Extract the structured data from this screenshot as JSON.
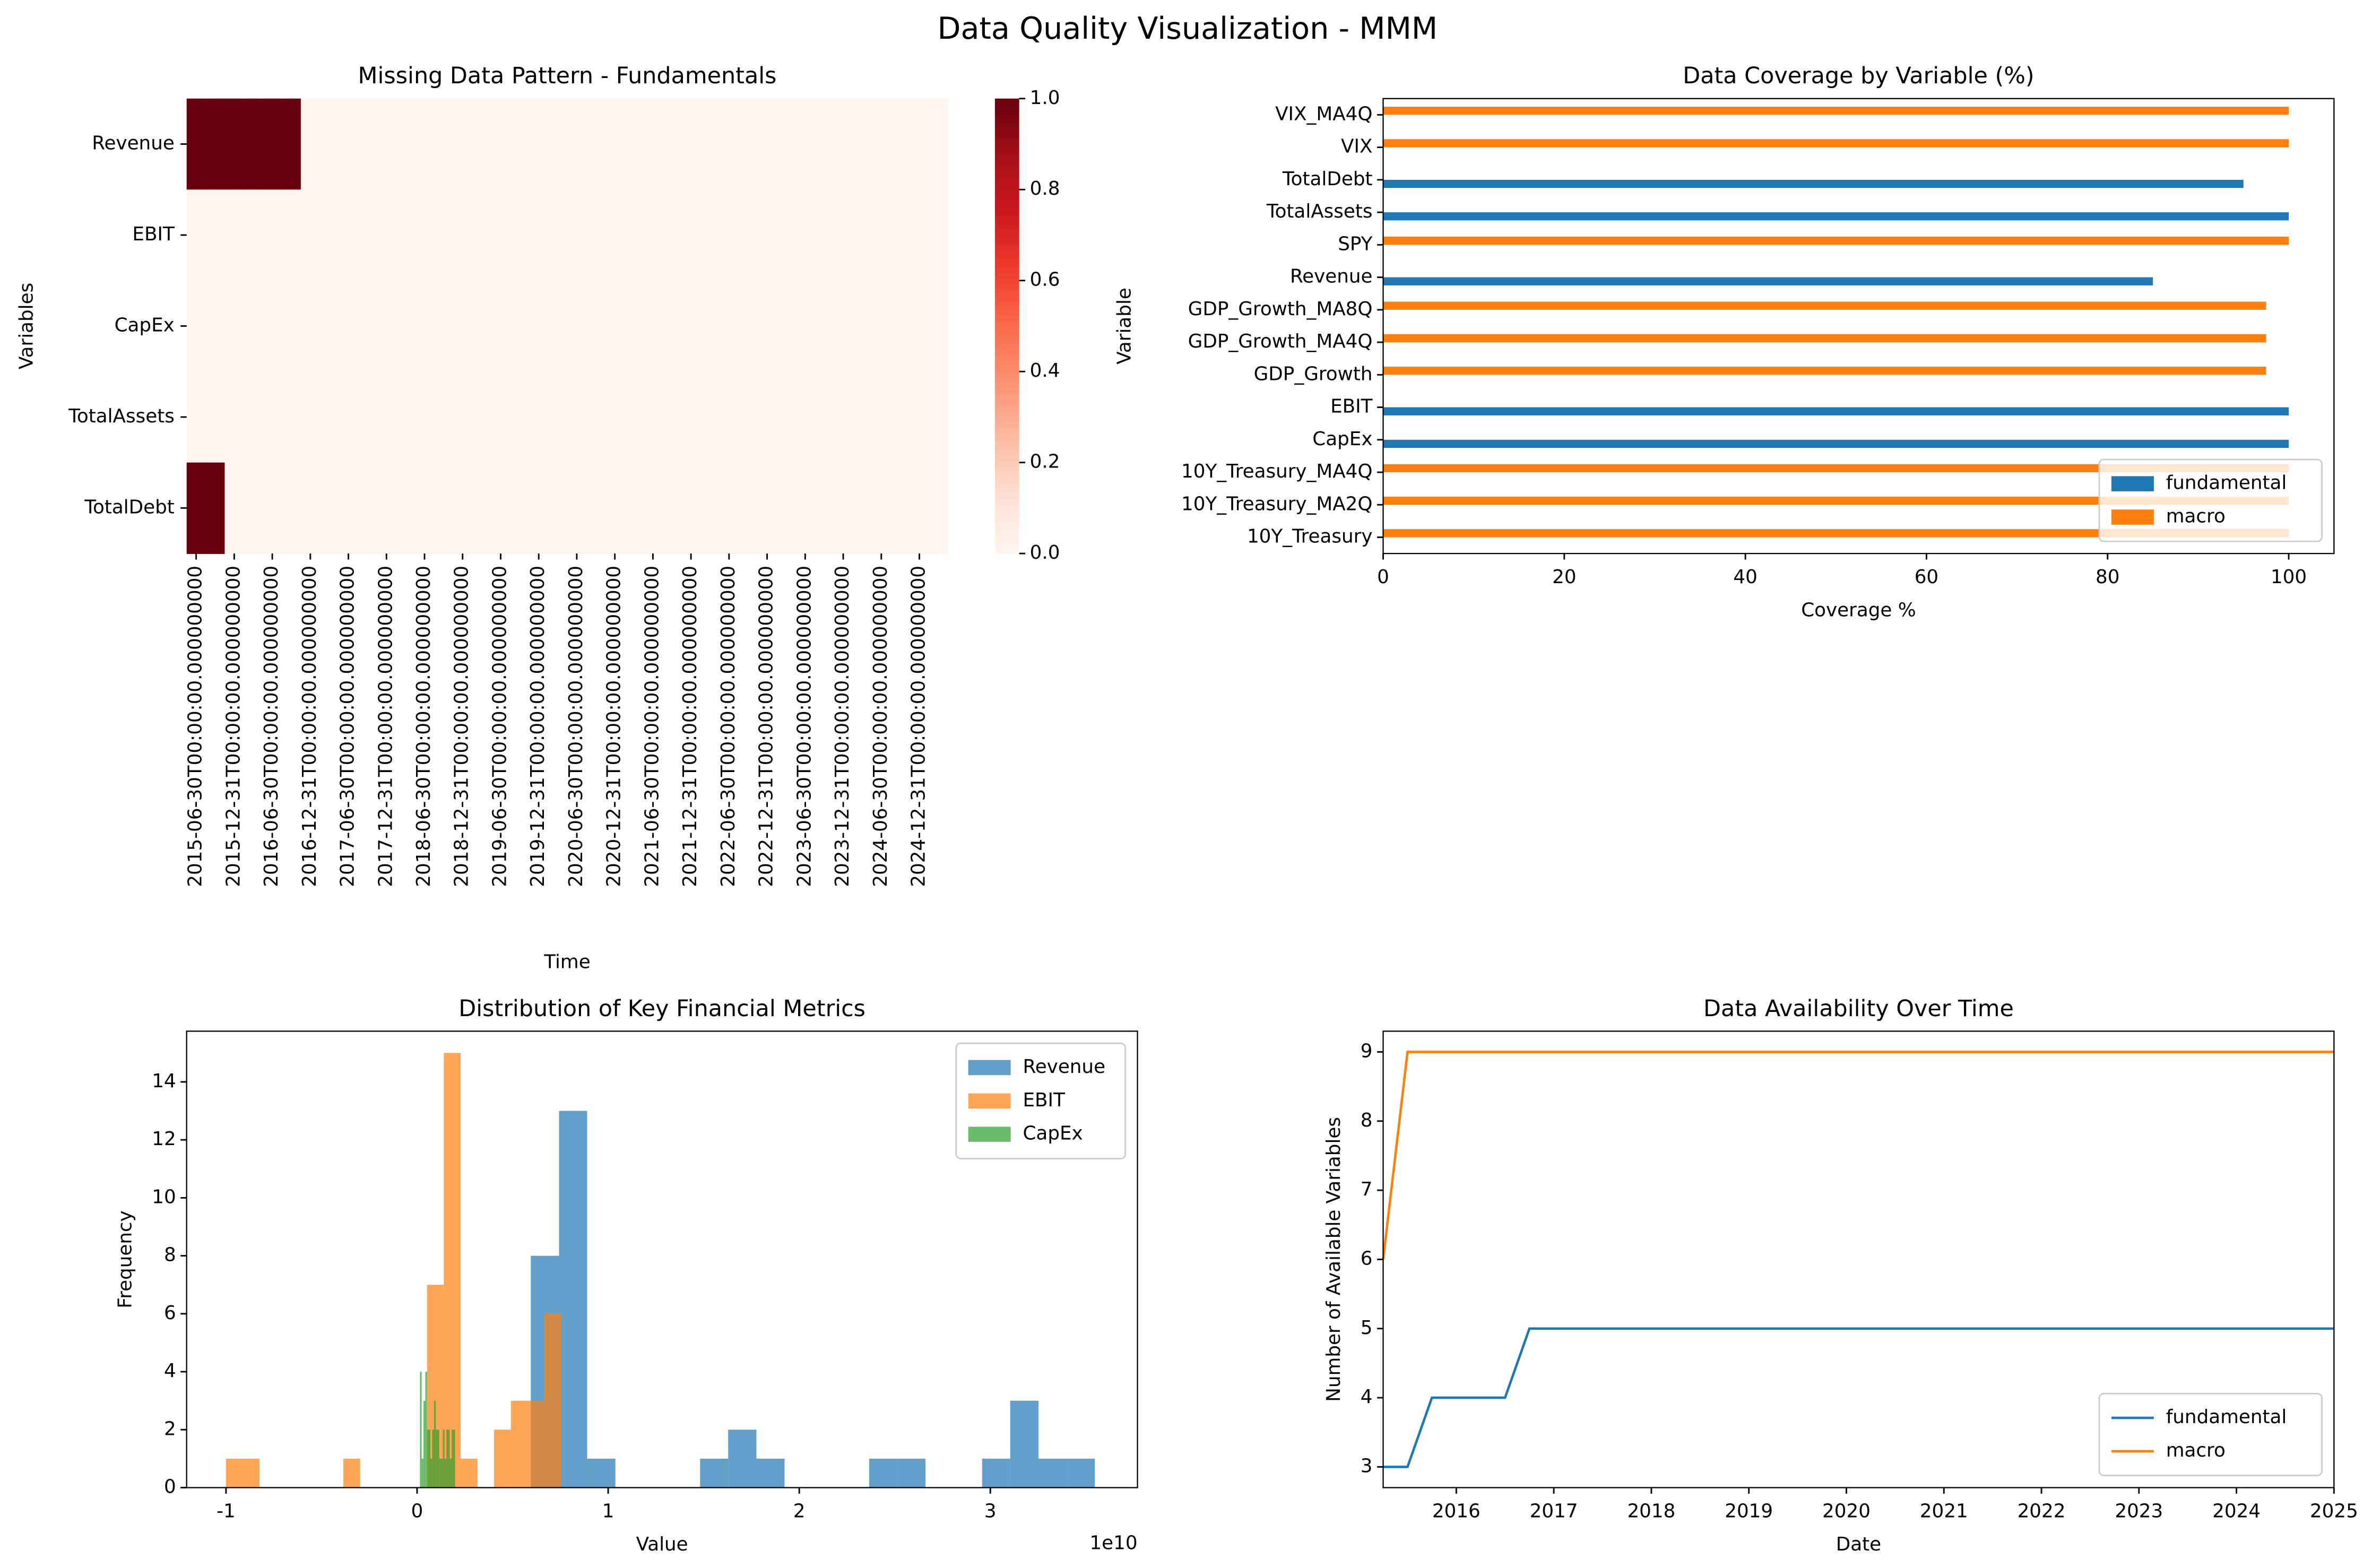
{
  "title": "Data Quality Visualization - MMM",
  "chart_data": [
    {
      "type": "heatmap",
      "title": "Missing Data Pattern - Fundamentals",
      "x_label": "Time",
      "y_label": "Variables",
      "rows": [
        "Revenue",
        "EBIT",
        "CapEx",
        "TotalAssets",
        "TotalDebt"
      ],
      "columns": [
        "2015-06-30T00:00:00.000000000",
        null,
        "2015-12-31T00:00:00.000000000",
        null,
        "2016-06-30T00:00:00.000000000",
        null,
        "2016-12-31T00:00:00.000000000",
        null,
        "2017-06-30T00:00:00.000000000",
        null,
        "2017-12-31T00:00:00.000000000",
        null,
        "2018-06-30T00:00:00.000000000",
        null,
        "2018-12-31T00:00:00.000000000",
        null,
        "2019-06-30T00:00:00.000000000",
        null,
        "2019-12-31T00:00:00.000000000",
        null,
        "2020-06-30T00:00:00.000000000",
        null,
        "2020-12-31T00:00:00.000000000",
        null,
        "2021-06-30T00:00:00.000000000",
        null,
        "2021-12-31T00:00:00.000000000",
        null,
        "2022-06-30T00:00:00.000000000",
        null,
        "2022-12-31T00:00:00.000000000",
        null,
        "2023-06-30T00:00:00.000000000",
        null,
        "2023-12-31T00:00:00.000000000",
        null,
        "2024-06-30T00:00:00.000000000",
        null,
        "2024-12-31T00:00:00.000000000",
        null
      ],
      "values": [
        [
          1,
          1,
          1,
          1,
          1,
          1,
          0,
          0,
          0,
          0,
          0,
          0,
          0,
          0,
          0,
          0,
          0,
          0,
          0,
          0,
          0,
          0,
          0,
          0,
          0,
          0,
          0,
          0,
          0,
          0,
          0,
          0,
          0,
          0,
          0,
          0,
          0,
          0,
          0,
          0
        ],
        [
          0,
          0,
          0,
          0,
          0,
          0,
          0,
          0,
          0,
          0,
          0,
          0,
          0,
          0,
          0,
          0,
          0,
          0,
          0,
          0,
          0,
          0,
          0,
          0,
          0,
          0,
          0,
          0,
          0,
          0,
          0,
          0,
          0,
          0,
          0,
          0,
          0,
          0,
          0,
          0
        ],
        [
          0,
          0,
          0,
          0,
          0,
          0,
          0,
          0,
          0,
          0,
          0,
          0,
          0,
          0,
          0,
          0,
          0,
          0,
          0,
          0,
          0,
          0,
          0,
          0,
          0,
          0,
          0,
          0,
          0,
          0,
          0,
          0,
          0,
          0,
          0,
          0,
          0,
          0,
          0,
          0
        ],
        [
          0,
          0,
          0,
          0,
          0,
          0,
          0,
          0,
          0,
          0,
          0,
          0,
          0,
          0,
          0,
          0,
          0,
          0,
          0,
          0,
          0,
          0,
          0,
          0,
          0,
          0,
          0,
          0,
          0,
          0,
          0,
          0,
          0,
          0,
          0,
          0,
          0,
          0,
          0,
          0
        ],
        [
          1,
          1,
          0,
          0,
          0,
          0,
          0,
          0,
          0,
          0,
          0,
          0,
          0,
          0,
          0,
          0,
          0,
          0,
          0,
          0,
          0,
          0,
          0,
          0,
          0,
          0,
          0,
          0,
          0,
          0,
          0,
          0,
          0,
          0,
          0,
          0,
          0,
          0,
          0,
          0
        ]
      ],
      "colormap": [
        "#fff5f0",
        "#fee0d2",
        "#fcbba1",
        "#fc9272",
        "#fb6a4a",
        "#ef3b2c",
        "#cb181d",
        "#a50f15",
        "#67000d"
      ],
      "clim": [
        0,
        1
      ],
      "colorbar_ticks": [
        {
          "value": 0,
          "label": "0.0"
        },
        {
          "value": 0.2,
          "label": "0.2"
        },
        {
          "value": 0.4,
          "label": "0.4"
        },
        {
          "value": 0.6,
          "label": "0.6"
        },
        {
          "value": 0.8,
          "label": "0.8"
        },
        {
          "value": 1,
          "label": "1.0"
        }
      ]
    },
    {
      "type": "barh",
      "title": "Data Coverage by Variable (%)",
      "x_label": "Coverage %",
      "y_label": "Variable",
      "categories": [
        "10Y_Treasury",
        "10Y_Treasury_MA2Q",
        "10Y_Treasury_MA4Q",
        "CapEx",
        "EBIT",
        "GDP_Growth",
        "GDP_Growth_MA4Q",
        "GDP_Growth_MA8Q",
        "Revenue",
        "SPY",
        "TotalAssets",
        "TotalDebt",
        "VIX",
        "VIX_MA4Q"
      ],
      "series": [
        {
          "name": "fundamental",
          "color": "#1f77b4",
          "values": [
            null,
            null,
            null,
            100,
            100,
            null,
            null,
            null,
            85,
            null,
            100,
            95,
            null,
            null
          ]
        },
        {
          "name": "macro",
          "color": "#ff7f0e",
          "values": [
            100,
            100,
            100,
            null,
            null,
            97.5,
            97.5,
            97.5,
            null,
            100,
            null,
            null,
            100,
            100
          ]
        }
      ],
      "xlim": [
        0,
        105
      ],
      "xticks": [
        0,
        20,
        40,
        60,
        80,
        100
      ],
      "legend": "lower right"
    },
    {
      "type": "histogram",
      "title": "Distribution of Key Financial Metrics",
      "x_label": "Value",
      "y_label": "Frequency",
      "offset_label": "1e10",
      "series": [
        {
          "name": "Revenue",
          "color": "#1f77b4",
          "alpha": 0.7,
          "bins": [
            0.595,
            0.743,
            0.89,
            1.038,
            1.185,
            1.333,
            1.481,
            1.628,
            1.776,
            1.923,
            2.071,
            2.219,
            2.366,
            2.514,
            2.661,
            2.809,
            2.957,
            3.104,
            3.252,
            3.399,
            3.547
          ],
          "counts": [
            8,
            13,
            1,
            0,
            0,
            0,
            1,
            2,
            1,
            0,
            0,
            0,
            1,
            1,
            0,
            0,
            1,
            3,
            1,
            1
          ]
        },
        {
          "name": "EBIT",
          "color": "#ff7f0e",
          "alpha": 0.7,
          "bins": [
            -1.0,
            -0.912,
            -0.825,
            -0.737,
            -0.649,
            -0.562,
            -0.474,
            -0.386,
            -0.298,
            -0.211,
            -0.123,
            -0.035,
            0.052,
            0.14,
            0.228,
            0.316,
            0.403,
            0.491,
            0.579,
            0.666,
            0.754
          ],
          "counts": [
            1,
            1,
            0,
            0,
            0,
            0,
            0,
            1,
            0,
            0,
            0,
            0,
            7,
            15,
            1,
            0,
            2,
            3,
            3,
            6
          ]
        },
        {
          "name": "CapEx",
          "color": "#2ca02c",
          "alpha": 0.7,
          "bins": [
            0.015,
            0.024,
            0.033,
            0.043,
            0.052,
            0.061,
            0.07,
            0.079,
            0.089,
            0.098,
            0.107,
            0.116,
            0.125,
            0.135,
            0.144,
            0.153,
            0.162,
            0.171,
            0.181,
            0.19,
            0.199
          ],
          "counts": [
            4,
            1,
            3,
            4,
            2,
            2,
            1,
            2,
            3,
            2,
            2,
            1,
            1,
            2,
            1,
            2,
            2,
            1,
            2,
            2
          ]
        }
      ],
      "xlim": [
        -1.206,
        3.77
      ],
      "xticks": [
        -1,
        0,
        1,
        2,
        3
      ],
      "ylim": [
        0,
        15.75
      ],
      "yticks": [
        0,
        2,
        4,
        6,
        8,
        10,
        12,
        14
      ],
      "legend": "upper right"
    },
    {
      "type": "line",
      "title": "Data Availability Over Time",
      "x_label": "Date",
      "y_label": "Number of Available Variables",
      "x": [
        2015.25,
        2015.5,
        2015.75,
        2016,
        2016.25,
        2016.5,
        2016.75,
        2017,
        2017.25,
        2017.5,
        2017.75,
        2018,
        2018.25,
        2018.5,
        2018.75,
        2019,
        2019.25,
        2019.5,
        2019.75,
        2020,
        2020.25,
        2020.5,
        2020.75,
        2021,
        2021.25,
        2021.5,
        2021.75,
        2022,
        2022.25,
        2022.5,
        2022.75,
        2023,
        2023.25,
        2023.5,
        2023.75,
        2024,
        2024.25,
        2024.5,
        2024.75,
        2025
      ],
      "series": [
        {
          "name": "fundamental",
          "color": "#1f77b4",
          "values": [
            3,
            3,
            4,
            4,
            4,
            4,
            5,
            5,
            5,
            5,
            5,
            5,
            5,
            5,
            5,
            5,
            5,
            5,
            5,
            5,
            5,
            5,
            5,
            5,
            5,
            5,
            5,
            5,
            5,
            5,
            5,
            5,
            5,
            5,
            5,
            5,
            5,
            5,
            5,
            5
          ]
        },
        {
          "name": "macro",
          "color": "#ff7f0e",
          "values": [
            6,
            9,
            9,
            9,
            9,
            9,
            9,
            9,
            9,
            9,
            9,
            9,
            9,
            9,
            9,
            9,
            9,
            9,
            9,
            9,
            9,
            9,
            9,
            9,
            9,
            9,
            9,
            9,
            9,
            9,
            9,
            9,
            9,
            9,
            9,
            9,
            9,
            9,
            9,
            9
          ]
        }
      ],
      "xlim": [
        2015.25,
        2025
      ],
      "xticks": [
        2016,
        2017,
        2018,
        2019,
        2020,
        2021,
        2022,
        2023,
        2024,
        2025
      ],
      "ylim": [
        2.7,
        9.3
      ],
      "yticks": [
        3,
        4,
        5,
        6,
        7,
        8,
        9
      ],
      "legend": "lower right"
    }
  ]
}
